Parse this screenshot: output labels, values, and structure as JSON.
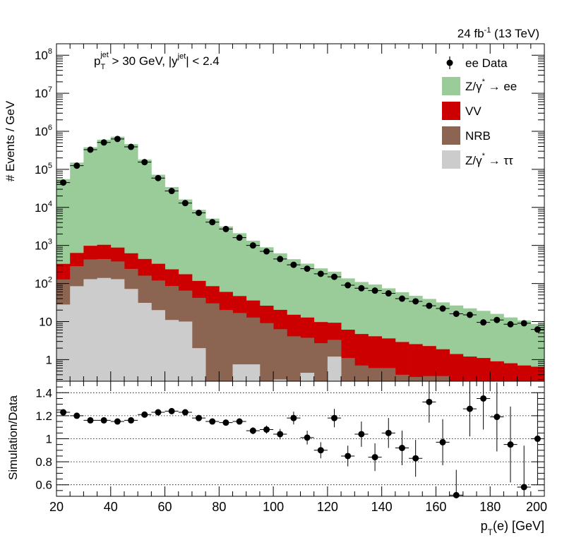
{
  "header": {
    "lumi_main": "24 fb",
    "lumi_sup": "-1",
    "lumi_tail": " (13 TeV)"
  },
  "cuts": {
    "pt_p": "p",
    "pt_sub": "T",
    "pt_sup": "jet",
    "pt_rest": " > 30 GeV,  |y",
    "y_sup": "jet",
    "y_rest": "| < 2.4"
  },
  "legend": [
    {
      "id": "data",
      "label": "ee Data"
    },
    {
      "id": "zee",
      "label_pre": "Z/γ",
      "label_sup": "*",
      "label_post": " → ee"
    },
    {
      "id": "vv",
      "label": "VV"
    },
    {
      "id": "nrb",
      "label": "NRB"
    },
    {
      "id": "ztt",
      "label_pre": "Z/γ",
      "label_sup": "*",
      "label_post": " → ττ"
    }
  ],
  "chart_data": [
    {
      "type": "bar",
      "title": "",
      "ylabel": "# Events / GeV",
      "yscale": "log",
      "ylim": [
        0.27,
        200000000
      ],
      "xlim": [
        20,
        200
      ],
      "y_tick_labels": [
        {
          "v": 1,
          "main": "1",
          "sup": ""
        },
        {
          "v": 10,
          "main": "10",
          "sup": ""
        },
        {
          "v": 100,
          "main": "10",
          "sup": "2"
        },
        {
          "v": 1000,
          "main": "10",
          "sup": "3"
        },
        {
          "v": 10000,
          "main": "10",
          "sup": "4"
        },
        {
          "v": 100000,
          "main": "10",
          "sup": "5"
        },
        {
          "v": 1000000,
          "main": "10",
          "sup": "6"
        },
        {
          "v": 10000000,
          "main": "10",
          "sup": "7"
        },
        {
          "v": 100000000,
          "main": "10",
          "sup": "8"
        }
      ],
      "bin_edges": [
        20,
        25,
        30,
        35,
        40,
        45,
        50,
        55,
        60,
        65,
        70,
        75,
        80,
        85,
        90,
        95,
        100,
        105,
        110,
        115,
        120,
        125,
        130,
        135,
        140,
        145,
        150,
        155,
        160,
        165,
        170,
        175,
        180,
        185,
        190,
        195,
        200
      ],
      "series": [
        {
          "name": "Z/γ* → ττ",
          "color": "#cccccc",
          "values": [
            28,
            85,
            130,
            140,
            130,
            72,
            31,
            20,
            11,
            10,
            2.0,
            0.1,
            0.1,
            0.75,
            0.75,
            0.1,
            0.3,
            0.1,
            0.45,
            0.1,
            1.2,
            0.1,
            0.1,
            0.1,
            0.1,
            0.1,
            0.1,
            0.1,
            0.1,
            0.1,
            0.1,
            0.1,
            0.1,
            0.1,
            0.1,
            0.1
          ]
        },
        {
          "name": "NRB",
          "color": "#8b6452",
          "values": [
            100,
            200,
            300,
            300,
            250,
            170,
            130,
            100,
            75,
            55,
            40,
            30,
            20,
            16,
            12,
            9,
            6,
            4.0,
            3.3,
            2.6,
            2.1,
            1.0,
            0.6,
            0.5,
            0.5,
            0.3,
            0.25,
            0.27,
            0.27,
            0.1,
            0.1,
            0.1,
            0.1,
            0.1,
            0.1,
            0.1
          ]
        },
        {
          "name": "VV",
          "color": "#cc0000",
          "values": [
            200,
            350,
            550,
            600,
            500,
            380,
            280,
            210,
            150,
            110,
            75,
            55,
            40,
            30,
            23,
            17,
            14,
            11,
            9,
            7,
            6,
            5,
            4,
            3.5,
            3.0,
            2.5,
            2.2,
            1.9,
            1.5,
            1.2,
            1.0,
            0.9,
            0.7,
            0.6,
            0.5,
            0.45
          ]
        },
        {
          "name": "Z/γ* → ee",
          "color": "#99cc99",
          "values": [
            55000,
            150000,
            380000,
            600000,
            720000,
            460000,
            180000,
            72000,
            34000,
            16000,
            8500,
            5000,
            3100,
            2050,
            1300,
            870,
            600,
            420,
            320,
            240,
            195,
            130,
            105,
            90,
            71,
            56,
            45,
            37,
            30,
            25,
            21,
            18,
            15,
            12,
            10,
            8
          ]
        }
      ],
      "data_series": {
        "name": "ee Data",
        "x": [
          22.5,
          27.5,
          32.5,
          37.5,
          42.5,
          47.5,
          52.5,
          57.5,
          62.5,
          67.5,
          72.5,
          77.5,
          82.5,
          87.5,
          92.5,
          97.5,
          102.5,
          107.5,
          112.5,
          117.5,
          122.5,
          127.5,
          132.5,
          137.5,
          142.5,
          147.5,
          152.5,
          157.5,
          162.5,
          167.5,
          172.5,
          177.5,
          182.5,
          187.5,
          192.5,
          197.5
        ],
        "y": [
          45000,
          125000,
          330000,
          510000,
          630000,
          390000,
          155000,
          59000,
          27000,
          13000,
          7200,
          4100,
          2700,
          1600,
          1000,
          700,
          440,
          310,
          245,
          180,
          150,
          90,
          75,
          65,
          55,
          40,
          34,
          26,
          22,
          16,
          15,
          9.5,
          11,
          8.5,
          9,
          6.2
        ]
      }
    },
    {
      "type": "scatter",
      "title": "",
      "xlabel_main": "p",
      "xlabel_sub": "T",
      "xlabel_rest": "(e) [GeV]",
      "ylabel": "Simulation/Data",
      "xlim": [
        20,
        200
      ],
      "ylim": [
        0.5,
        1.5
      ],
      "x_ticks": [
        20,
        40,
        60,
        80,
        100,
        120,
        140,
        160,
        180,
        200
      ],
      "y_ticks": [
        0.6,
        0.8,
        1,
        1.2,
        1.4
      ],
      "y_tick_labels": [
        "0.6",
        "0.8",
        "1",
        "1.2",
        "1.4"
      ],
      "grid_y": [
        0.6,
        0.8,
        1,
        1.2,
        1.4
      ],
      "x": [
        22.5,
        27.5,
        32.5,
        37.5,
        42.5,
        47.5,
        52.5,
        57.5,
        62.5,
        67.5,
        72.5,
        77.5,
        82.5,
        87.5,
        92.5,
        97.5,
        102.5,
        107.5,
        112.5,
        117.5,
        122.5,
        127.5,
        132.5,
        137.5,
        142.5,
        147.5,
        152.5,
        157.5,
        162.5,
        167.5,
        172.5,
        177.5,
        182.5,
        187.5,
        192.5,
        197.5
      ],
      "y": [
        1.23,
        1.2,
        1.16,
        1.16,
        1.15,
        1.16,
        1.21,
        1.23,
        1.24,
        1.23,
        1.18,
        1.15,
        1.14,
        1.15,
        1.07,
        1.08,
        1.04,
        1.18,
        1.01,
        0.9,
        1.18,
        0.85,
        1.04,
        0.84,
        1.05,
        0.92,
        0.83,
        1.32,
        0.97,
        0.51,
        1.26,
        1.35,
        1.19,
        0.95,
        0.58,
        1.0
      ],
      "yerr": [
        0.01,
        0.01,
        0.01,
        0.01,
        0.01,
        0.01,
        0.01,
        0.01,
        0.01,
        0.01,
        0.015,
        0.02,
        0.02,
        0.025,
        0.03,
        0.035,
        0.045,
        0.055,
        0.06,
        0.07,
        0.08,
        0.09,
        0.11,
        0.12,
        0.13,
        0.15,
        0.16,
        0.18,
        0.2,
        0.22,
        0.24,
        0.27,
        0.3,
        0.33,
        0.36,
        0.4
      ]
    }
  ]
}
